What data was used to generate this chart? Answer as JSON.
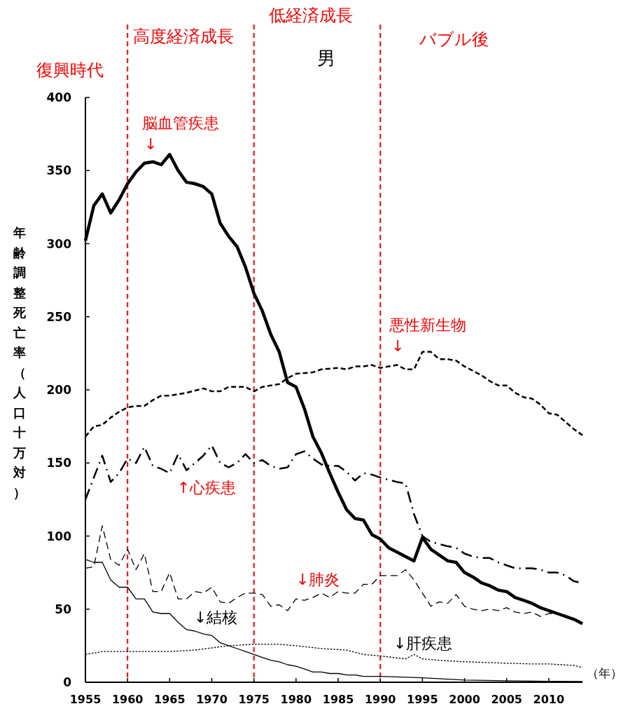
{
  "chart_data": {
    "type": "line",
    "title": "男",
    "ylabel": "年齢調整死亡率（人口十万対）",
    "xlabel": "（年）",
    "xlim": [
      1955,
      2014
    ],
    "xticks": [
      1955,
      1960,
      1965,
      1970,
      1975,
      1980,
      1985,
      1990,
      1995,
      2000,
      2005,
      2010
    ],
    "ylim": [
      0,
      400
    ],
    "yticks": [
      0,
      50,
      100,
      150,
      200,
      250,
      300,
      350,
      400
    ],
    "grid": false,
    "ref_lines": [
      {
        "axis": "x",
        "value": 1960,
        "color": "#ff0000",
        "line_style": "dashed"
      },
      {
        "axis": "x",
        "value": 1975,
        "color": "#ff0000",
        "line_style": "dashed"
      },
      {
        "axis": "x",
        "value": 1990,
        "color": "#ff0000",
        "line_style": "dashed"
      }
    ],
    "annotations": [
      "復興時代",
      "高度経済成長",
      "低経済成長",
      "バブル後",
      "脳血管疾患\n↓",
      "悪性新生物\n↓",
      "↑心疾患",
      "↓肺炎",
      "↓結核",
      "↓肝疾患"
    ],
    "series": [
      {
        "color": "#000000",
        "line_style": "solid",
        "x": [
          1955,
          1956,
          1957,
          1958,
          1959,
          1960,
          1961,
          1962,
          1963,
          1964,
          1965,
          1966,
          1967,
          1968,
          1969,
          1970,
          1971,
          1972,
          1973,
          1974,
          1975,
          1976,
          1977,
          1978,
          1979,
          1980,
          1981,
          1982,
          1983,
          1984,
          1985,
          1986,
          1987,
          1988,
          1989,
          1990,
          1991,
          1992,
          1993,
          1994,
          1995,
          1996,
          1997,
          1998,
          1999,
          2000,
          2001,
          2002,
          2003,
          2004,
          2005,
          2006,
          2007,
          2008,
          2009,
          2010,
          2011,
          2012,
          2013,
          2014
        ],
        "values": [
          302,
          326,
          334,
          321,
          330,
          341,
          349,
          355,
          356,
          354,
          361,
          350,
          342,
          341,
          339,
          334,
          314,
          305,
          298,
          284,
          266,
          254,
          238,
          226,
          205,
          202,
          187,
          168,
          157,
          143,
          130,
          118,
          112,
          111,
          101,
          98,
          92,
          89,
          86,
          83,
          99,
          91,
          87,
          83,
          82,
          75,
          72,
          68,
          66,
          63,
          62,
          58,
          56,
          54,
          51,
          49,
          47,
          45,
          43,
          40
        ]
      },
      {
        "color": "#000000",
        "line_style": "dashed",
        "x": [
          1955,
          1956,
          1957,
          1958,
          1959,
          1960,
          1961,
          1962,
          1963,
          1964,
          1965,
          1967,
          1969,
          1970,
          1971,
          1972,
          1974,
          1975,
          1976,
          1978,
          1979,
          1980,
          1982,
          1983,
          1985,
          1986,
          1987,
          1988,
          1989,
          1990,
          1991,
          1992,
          1993,
          1994,
          1995,
          1996,
          1997,
          1998,
          1999,
          2000,
          2002,
          2003,
          2004,
          2005,
          2006,
          2007,
          2008,
          2009,
          2010,
          2011,
          2012,
          2013,
          2014
        ],
        "values": [
          168,
          175,
          176,
          181,
          185,
          188,
          189,
          189,
          193,
          196,
          196,
          198,
          201,
          199,
          199,
          202,
          202,
          199,
          202,
          204,
          208,
          211,
          212,
          214,
          215,
          214,
          216,
          216,
          217,
          215,
          216,
          217,
          214,
          214,
          226,
          226,
          221,
          221,
          220,
          216,
          210,
          206,
          203,
          203,
          198,
          195,
          194,
          190,
          184,
          183,
          178,
          173,
          169
        ]
      },
      {
        "color": "#000000",
        "line_style": "dashdot",
        "x": [
          1955,
          1956,
          1957,
          1958,
          1959,
          1960,
          1961,
          1962,
          1963,
          1964,
          1965,
          1966,
          1967,
          1968,
          1969,
          1970,
          1971,
          1972,
          1973,
          1974,
          1975,
          1976,
          1977,
          1978,
          1979,
          1980,
          1981,
          1982,
          1983,
          1984,
          1985,
          1986,
          1987,
          1988,
          1989,
          1990,
          1992,
          1993,
          1994,
          1995,
          1996,
          1998,
          1999,
          2000,
          2001,
          2002,
          2003,
          2004,
          2005,
          2006,
          2007,
          2008,
          2009,
          2010,
          2011,
          2012,
          2013,
          2014
        ],
        "values": [
          125,
          140,
          155,
          137,
          143,
          153,
          150,
          161,
          148,
          146,
          143,
          156,
          145,
          150,
          155,
          162,
          150,
          147,
          150,
          156,
          150,
          152,
          148,
          146,
          147,
          156,
          158,
          153,
          149,
          148,
          148,
          144,
          138,
          143,
          142,
          140,
          137,
          136,
          115,
          100,
          96,
          93,
          92,
          88,
          86,
          85,
          85,
          82,
          80,
          78,
          78,
          78,
          77,
          75,
          75,
          73,
          69,
          68
        ]
      },
      {
        "color": "#000000",
        "line_style": "longdash",
        "x": [
          1955,
          1956,
          1957,
          1958,
          1959,
          1960,
          1961,
          1962,
          1963,
          1964,
          1965,
          1966,
          1967,
          1968,
          1969,
          1970,
          1971,
          1972,
          1973,
          1974,
          1975,
          1976,
          1977,
          1978,
          1979,
          1980,
          1981,
          1982,
          1983,
          1984,
          1985,
          1986,
          1987,
          1988,
          1989,
          1990,
          1991,
          1992,
          1993,
          1994,
          1995,
          1996,
          1997,
          1998,
          1999,
          2000,
          2001,
          2002,
          2003,
          2004,
          2005,
          2006,
          2007,
          2008,
          2009,
          2010,
          2011
        ],
        "values": [
          78,
          79,
          107,
          84,
          80,
          91,
          77,
          88,
          62,
          62,
          75,
          57,
          57,
          62,
          61,
          65,
          55,
          54,
          58,
          61,
          61,
          60,
          52,
          53,
          49,
          57,
          56,
          58,
          61,
          58,
          62,
          61,
          61,
          67,
          67,
          73,
          73,
          73,
          77,
          70,
          61,
          52,
          55,
          54,
          60,
          52,
          50,
          49,
          50,
          49,
          51,
          48,
          47,
          48,
          45,
          47,
          47
        ]
      },
      {
        "color": "#000000",
        "line_style": "solid",
        "x": [
          1955,
          1956,
          1957,
          1958,
          1959,
          1960,
          1961,
          1962,
          1963,
          1964,
          1965,
          1966,
          1967,
          1968,
          1969,
          1970,
          1971,
          1972,
          1973,
          1974,
          1975,
          1976,
          1977,
          1978,
          1979,
          1980,
          1981,
          1982,
          1983,
          1984,
          1985,
          1986,
          1987,
          1988,
          1989,
          1990,
          1995,
          2000,
          2005,
          2010,
          2014
        ],
        "values": [
          84,
          82,
          82,
          70,
          65,
          65,
          57,
          57,
          48,
          47,
          47,
          41,
          36,
          35,
          33,
          32,
          27,
          25,
          23,
          21,
          19,
          17,
          15,
          14,
          12,
          11,
          9,
          7,
          7,
          6,
          6,
          5,
          5,
          4,
          4,
          4,
          3,
          1.5,
          1,
          0.6,
          0.5
        ]
      },
      {
        "color": "#000000",
        "line_style": "dotted",
        "x": [
          1955,
          1957,
          1960,
          1965,
          1968,
          1972,
          1975,
          1978,
          1980,
          1983,
          1986,
          1988,
          1990,
          1993,
          1994,
          1995,
          1997,
          2000,
          2005,
          2008,
          2010,
          2013,
          2014
        ],
        "values": [
          19,
          21,
          21,
          21,
          22,
          25,
          26,
          26,
          25,
          23,
          22,
          19,
          18,
          16,
          19,
          16,
          15,
          14,
          13,
          12.5,
          12.5,
          11.5,
          10
        ]
      }
    ]
  }
}
